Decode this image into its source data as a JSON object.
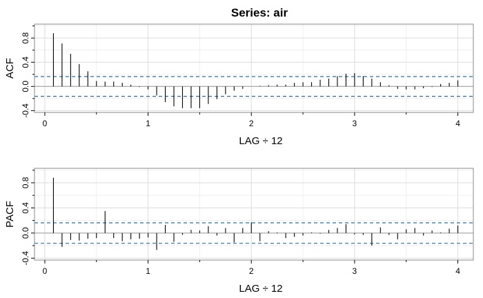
{
  "title": "Series:  air",
  "chart_data": [
    {
      "type": "bar",
      "panel": "ACF",
      "xlabel": "LAG ÷ 12",
      "ylabel": "ACF",
      "xlim": [
        -0.1,
        4.15
      ],
      "ylim": [
        -0.43,
        1.03
      ],
      "x_ticks": [
        "0",
        "1",
        "2",
        "3",
        "4"
      ],
      "y_ticks": [
        "-0.4",
        "0.0",
        "0.4",
        "0.8"
      ],
      "ci": 0.163,
      "grid": true,
      "lags": [
        0.0833,
        0.1667,
        0.25,
        0.3333,
        0.4167,
        0.5,
        0.5833,
        0.6667,
        0.75,
        0.8333,
        0.9167,
        1.0,
        1.0833,
        1.1667,
        1.25,
        1.3333,
        1.4167,
        1.5,
        1.5833,
        1.6667,
        1.75,
        1.8333,
        1.9167,
        2.0,
        2.0833,
        2.1667,
        2.25,
        2.3333,
        2.4167,
        2.5,
        2.5833,
        2.6667,
        2.75,
        2.8333,
        2.9167,
        3.0,
        3.0833,
        3.1667,
        3.25,
        3.3333,
        3.4167,
        3.5,
        3.5833,
        3.6667,
        3.75,
        3.8333,
        3.9167,
        4.0
      ],
      "values": [
        0.88,
        0.71,
        0.54,
        0.37,
        0.25,
        0.09,
        0.08,
        0.08,
        0.06,
        0.03,
        -0.01,
        -0.05,
        -0.15,
        -0.26,
        -0.33,
        -0.36,
        -0.36,
        -0.36,
        -0.29,
        -0.21,
        -0.13,
        -0.07,
        -0.04,
        0.0,
        0.01,
        0.02,
        0.03,
        0.03,
        0.06,
        0.07,
        0.07,
        0.11,
        0.13,
        0.17,
        0.21,
        0.22,
        0.17,
        0.13,
        0.07,
        0.02,
        -0.04,
        -0.05,
        -0.05,
        -0.03,
        -0.01,
        0.04,
        0.06,
        0.1
      ]
    },
    {
      "type": "bar",
      "panel": "PACF",
      "xlabel": "LAG ÷ 12",
      "ylabel": "PACF",
      "xlim": [
        -0.1,
        4.15
      ],
      "ylim": [
        -0.43,
        1.03
      ],
      "x_ticks": [
        "0",
        "1",
        "2",
        "3",
        "4"
      ],
      "y_ticks": [
        "-0.4",
        "0.0",
        "0.4",
        "0.8"
      ],
      "ci": 0.163,
      "grid": true,
      "lags": [
        0.0833,
        0.1667,
        0.25,
        0.3333,
        0.4167,
        0.5,
        0.5833,
        0.6667,
        0.75,
        0.8333,
        0.9167,
        1.0,
        1.0833,
        1.1667,
        1.25,
        1.3333,
        1.4167,
        1.5,
        1.5833,
        1.6667,
        1.75,
        1.8333,
        1.9167,
        2.0,
        2.0833,
        2.1667,
        2.25,
        2.3333,
        2.4167,
        2.5,
        2.5833,
        2.6667,
        2.75,
        2.8333,
        2.9167,
        3.0,
        3.0833,
        3.1667,
        3.25,
        3.3333,
        3.4167,
        3.5,
        3.5833,
        3.6667,
        3.75,
        3.8333,
        3.9167,
        4.0
      ],
      "values": [
        0.88,
        -0.22,
        -0.11,
        -0.12,
        -0.09,
        -0.08,
        0.35,
        -0.08,
        -0.13,
        -0.1,
        -0.09,
        -0.07,
        -0.27,
        0.13,
        -0.14,
        -0.03,
        0.05,
        0.04,
        0.11,
        -0.04,
        0.08,
        -0.15,
        0.08,
        0.17,
        -0.13,
        0.03,
        0.01,
        -0.08,
        -0.06,
        -0.04,
        0.01,
        -0.01,
        0.05,
        0.08,
        0.14,
        -0.02,
        -0.03,
        -0.2,
        0.09,
        -0.03,
        -0.1,
        0.06,
        0.08,
        -0.04,
        0.04,
        0.01,
        0.07,
        0.12
      ]
    }
  ]
}
